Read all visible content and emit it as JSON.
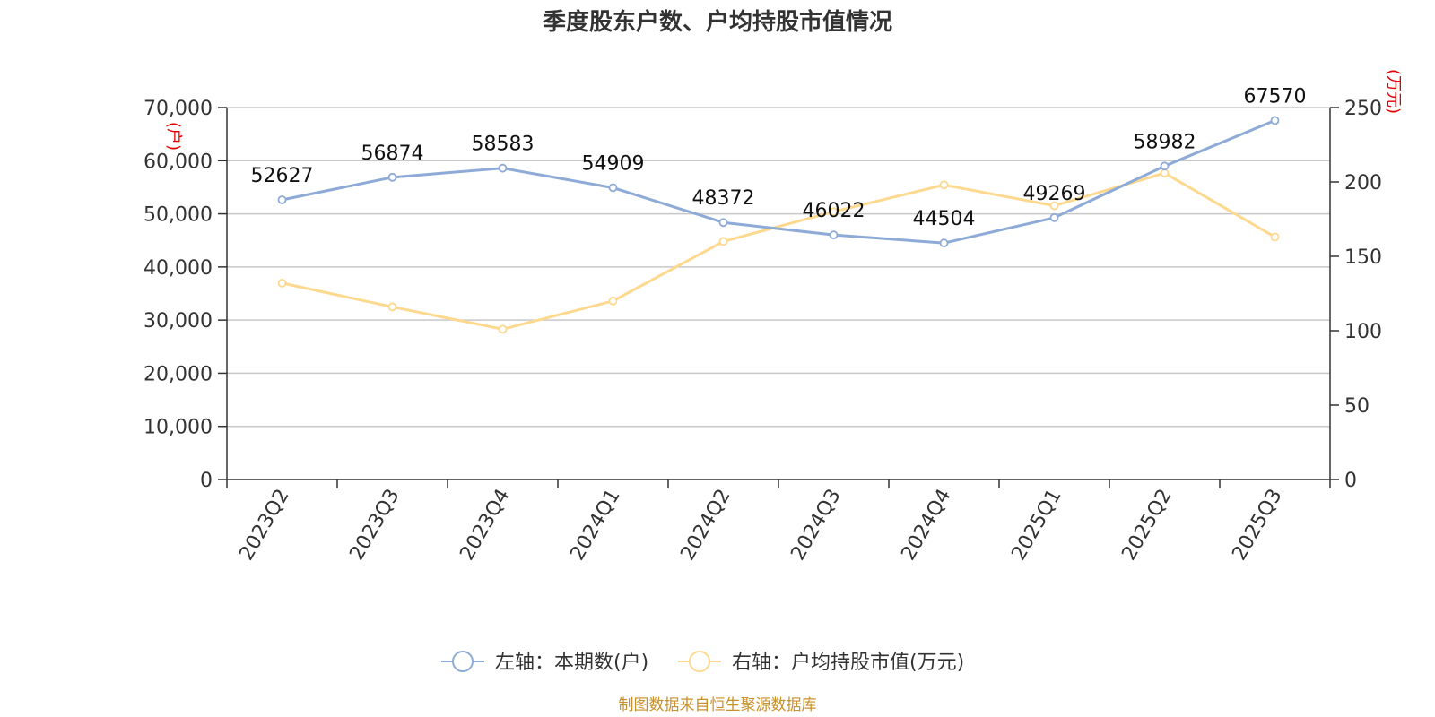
{
  "chart_data": {
    "type": "line",
    "title": "季度股东户数、户均持股市值情况",
    "categories": [
      "2023Q2",
      "2023Q3",
      "2023Q4",
      "2024Q1",
      "2024Q2",
      "2024Q3",
      "2024Q4",
      "2025Q1",
      "2025Q2",
      "2025Q3"
    ],
    "left_axis": {
      "unit": "(户)",
      "ylim": [
        0,
        70000
      ],
      "ticks": [
        "0",
        "10,000",
        "20,000",
        "30,000",
        "40,000",
        "50,000",
        "60,000",
        "70,000"
      ],
      "tick_values": [
        0,
        10000,
        20000,
        30000,
        40000,
        50000,
        60000,
        70000
      ]
    },
    "right_axis": {
      "unit": "(万元)",
      "ylim": [
        0,
        250
      ],
      "ticks": [
        "0",
        "50",
        "100",
        "150",
        "200",
        "250"
      ],
      "tick_values": [
        0,
        50,
        100,
        150,
        200,
        250
      ]
    },
    "series": [
      {
        "name": "左轴：本期数(户)",
        "axis": "left",
        "color": "#8eaad6",
        "values": [
          52627,
          56874,
          58583,
          54909,
          48372,
          46022,
          44504,
          49269,
          58982,
          67570
        ],
        "labels": [
          "52627",
          "56874",
          "58583",
          "54909",
          "48372",
          "46022",
          "44504",
          "49269",
          "58982",
          "67570"
        ]
      },
      {
        "name": "右轴：户均持股市值(万元)",
        "axis": "right",
        "color": "#fdd98f",
        "values": [
          132,
          116,
          101,
          120,
          160,
          180,
          198,
          184,
          206,
          163
        ]
      }
    ],
    "grid": true,
    "legend": "bottom-center",
    "source": "制图数据来自恒生聚源数据库"
  }
}
